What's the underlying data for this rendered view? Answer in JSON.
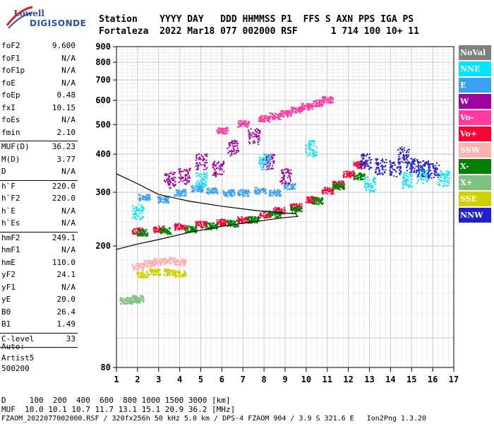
{
  "logo": {
    "top": "Lowell",
    "main": "DIGISONDE"
  },
  "header": {
    "line1": "Station    YYYY DAY   DDD HHMMSS P1  FFS S AXN PPS IGA PS",
    "line2": "Fortaleza  2022 Mar18 077 002000 RSF      1 714 100 10+ 11"
  },
  "params": [
    {
      "label": "foF2",
      "value": "9.600"
    },
    {
      "label": "foF1",
      "value": "N/A"
    },
    {
      "label": "foF1p",
      "value": "N/A"
    },
    {
      "label": "foE",
      "value": "N/A"
    },
    {
      "label": "foEp",
      "value": "0.48"
    },
    {
      "label": "fxI",
      "value": "10.15"
    },
    {
      "label": "foEs",
      "value": "N/A"
    },
    {
      "label": "fmin",
      "value": "2.10"
    },
    {
      "sep": true
    },
    {
      "label": "MUF(D)",
      "value": "36.23"
    },
    {
      "label": "M(D)",
      "value": "3.77"
    },
    {
      "label": "D",
      "value": "N/A"
    },
    {
      "sep": true
    },
    {
      "label": "h`F",
      "value": "220.0"
    },
    {
      "label": "h`F2",
      "value": "220.0"
    },
    {
      "label": "h`E",
      "value": "N/A"
    },
    {
      "label": "h`Es",
      "value": "N/A"
    },
    {
      "sep": true
    },
    {
      "label": "hmF2",
      "value": "249.1"
    },
    {
      "label": "hmF1",
      "value": "N/A"
    },
    {
      "label": "hmE",
      "value": "110.0"
    },
    {
      "label": "yF2",
      "value": "24.1"
    },
    {
      "label": "yF1",
      "value": "N/A"
    },
    {
      "label": "yE",
      "value": "20.0"
    },
    {
      "label": "B0",
      "value": "26.4"
    },
    {
      "label": "B1",
      "value": "1.49"
    },
    {
      "sep": true
    },
    {
      "label": "C-level",
      "value": "33"
    },
    {
      "sep": true
    }
  ],
  "auto": [
    "Auto:",
    "Artist5",
    "500200"
  ],
  "legend": [
    {
      "label": "NoVal",
      "color": "#7f7f7f"
    },
    {
      "label": "NNE",
      "color": "#00e5ff"
    },
    {
      "label": "E",
      "color": "#3aa0f0"
    },
    {
      "label": "W",
      "color": "#a000a0"
    },
    {
      "label": "Vo-",
      "color": "#ff3aa0"
    },
    {
      "label": "Vo+",
      "color": "#ff0033"
    },
    {
      "label": "SSW",
      "color": "#ffb0b0"
    },
    {
      "label": "X-",
      "color": "#007f00"
    },
    {
      "label": "X+",
      "color": "#80c080"
    },
    {
      "label": "SSE",
      "color": "#d0d000"
    },
    {
      "label": "NNW",
      "color": "#2020d0"
    }
  ],
  "bottom": {
    "line1": "D     100  200  400  600  800 1000 1500 3000 [km]",
    "line2": "MUF  10.0 10.1 10.7 11.7 13.1 15.1 20.9 36.2 [MHz]",
    "line3": "FZAOM_2022077002000.RSF / 320fx256h 50 kHz 5.0 km / DPS-4 FZAOM 904 / 3.9 S 321.6 E   Ion2Png 1.3.20"
  },
  "chart_data": {
    "type": "scatter",
    "title": "",
    "xlabel": "",
    "ylabel": "",
    "xlim": [
      1,
      17
    ],
    "ylim": [
      80,
      900
    ],
    "y_scale": "log",
    "x_ticks": [
      1,
      2,
      3,
      4,
      5,
      6,
      7,
      8,
      9,
      10,
      11,
      12,
      13,
      14,
      15,
      16,
      17
    ],
    "y_ticks": [
      80,
      200,
      300,
      400,
      500,
      600,
      700,
      800,
      900
    ],
    "grid": true,
    "clusters": [
      {
        "name": "E",
        "x": [
          2.3,
          3.2,
          4.0,
          4.8,
          5.5,
          6.3,
          7.0,
          7.8,
          8.5,
          9.2
        ],
        "y": [
          290,
          285,
          300,
          310,
          305,
          300,
          300,
          305,
          300,
          315
        ]
      },
      {
        "name": "W",
        "x": [
          3.5,
          4.2,
          5.0,
          5.8,
          6.5,
          7.5,
          8.2,
          9.0
        ],
        "y": [
          330,
          340,
          380,
          360,
          420,
          460,
          380,
          340
        ]
      },
      {
        "name": "Vo+",
        "x": [
          2.0,
          3.0,
          4.0,
          5.0,
          6.0,
          7.0,
          8.0,
          8.7,
          9.5,
          10.2,
          11.0,
          11.5,
          12.0,
          12.5
        ],
        "y": [
          225,
          228,
          232,
          236,
          240,
          245,
          255,
          262,
          270,
          285,
          305,
          320,
          345,
          370
        ]
      },
      {
        "name": "X-",
        "x": [
          2.2,
          3.3,
          4.5,
          5.5,
          6.5,
          7.5,
          8.5,
          9.5,
          10.5,
          11.5,
          12.5
        ],
        "y": [
          222,
          225,
          228,
          233,
          238,
          245,
          255,
          265,
          282,
          315,
          340
        ]
      },
      {
        "name": "Vo-",
        "x": [
          6.0,
          7.0,
          8.0,
          8.5,
          9.0,
          9.5,
          10.0,
          10.5,
          11.0
        ],
        "y": [
          480,
          505,
          525,
          535,
          545,
          560,
          575,
          590,
          605
        ]
      },
      {
        "name": "NNE",
        "x": [
          2.0,
          5.0,
          8.0,
          10.2,
          13.0,
          14.8,
          15.5,
          16.5
        ],
        "y": [
          260,
          330,
          380,
          420,
          320,
          330,
          340,
          335
        ]
      },
      {
        "name": "NNW",
        "x": [
          12.8,
          13.5,
          14.2,
          14.6,
          15.0,
          15.5,
          16.0
        ],
        "y": [
          380,
          365,
          360,
          400,
          370,
          360,
          355
        ]
      },
      {
        "name": "SSW",
        "x": [
          2.0,
          2.5,
          3.0,
          3.5,
          4.0
        ],
        "y": [
          172,
          176,
          178,
          180,
          178
        ]
      },
      {
        "name": "SSE",
        "x": [
          2.2,
          2.8,
          3.5,
          4.0
        ],
        "y": [
          162,
          165,
          165,
          163
        ]
      },
      {
        "name": "X+",
        "x": [
          1.4,
          1.8,
          2.0
        ],
        "y": [
          133,
          133,
          135
        ]
      }
    ],
    "traces": [
      {
        "name": "profile",
        "x": [
          1.0,
          2.0,
          3.0,
          4.5,
          6.0,
          7.5,
          8.5,
          9.5,
          9.6,
          9.0,
          7.5,
          6.0,
          4.5,
          3.0,
          2.0,
          1.0
        ],
        "y": [
          345,
          320,
          295,
          280,
          270,
          262,
          258,
          255,
          250,
          248,
          240,
          232,
          222,
          210,
          203,
          195
        ]
      }
    ]
  }
}
